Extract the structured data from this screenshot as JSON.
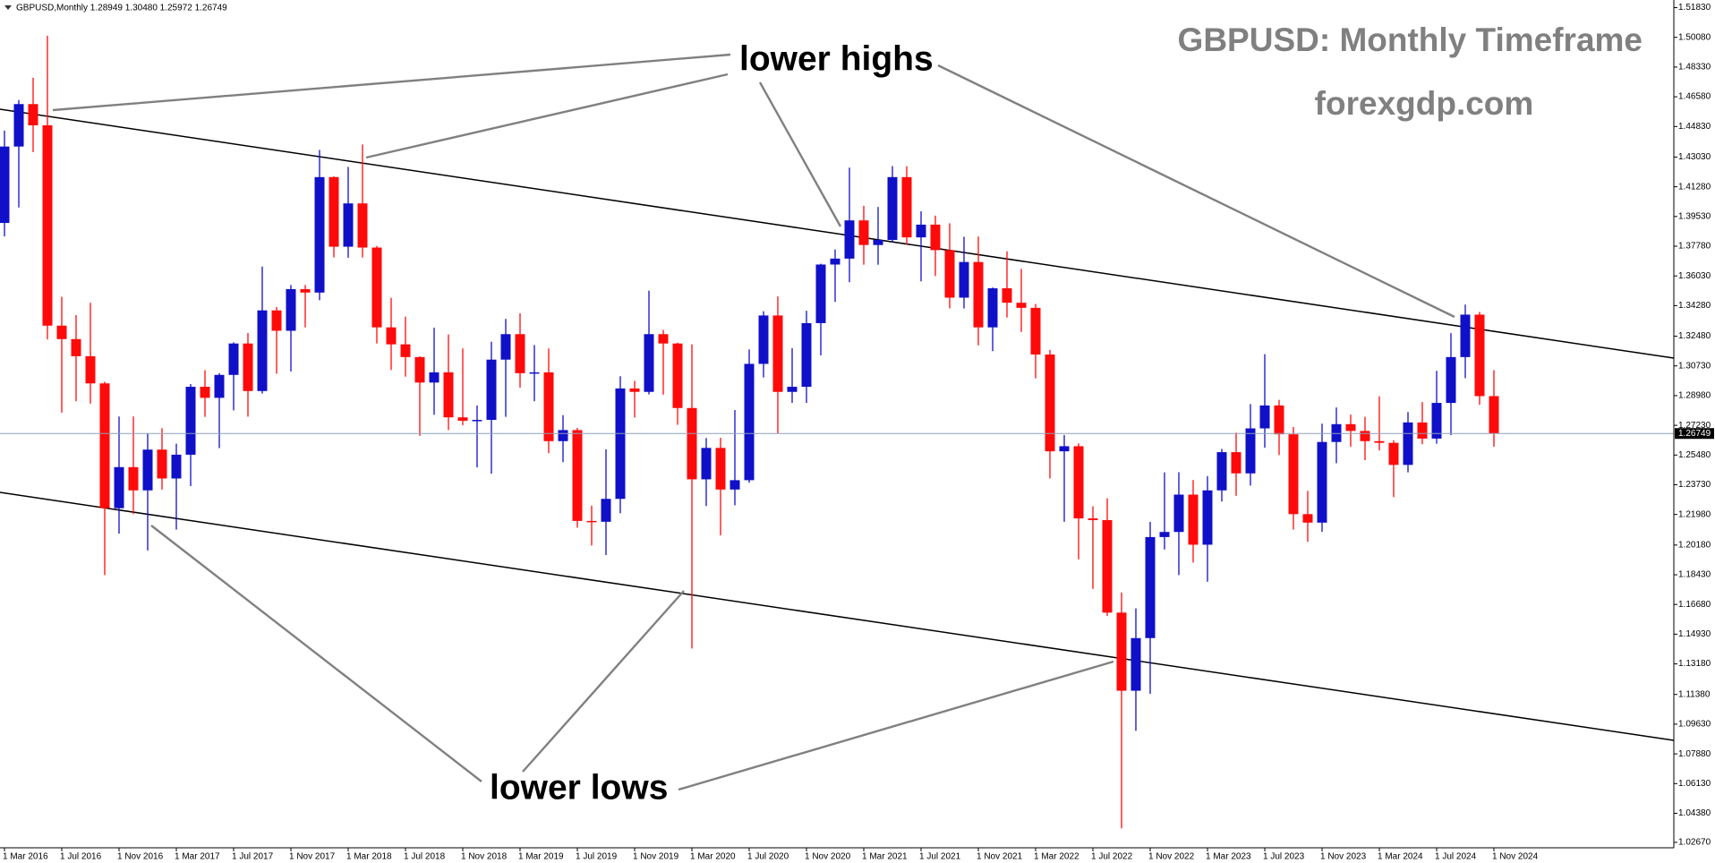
{
  "chart_data": {
    "type": "candlestick",
    "header": "GBPUSD,Monthly  1.28949 1.30480 1.25972 1.26749",
    "title": "GBPUSD: Monthly Timeframe",
    "subtitle": "forexgdp.com",
    "annotations": [
      "lower highs",
      "lower lows"
    ],
    "up_color": "#1010c8",
    "down_color": "#ff0a0a",
    "current_price": 1.26749,
    "categories": [
      "1 Mar 2016",
      null,
      null,
      null,
      "1 Jul 2016",
      null,
      null,
      null,
      "1 Nov 2016",
      null,
      null,
      null,
      "1 Mar 2017",
      null,
      null,
      null,
      "1 Jul 2017",
      null,
      null,
      null,
      "1 Nov 2017",
      null,
      null,
      null,
      "1 Mar 2018",
      null,
      null,
      null,
      "1 Jul 2018",
      null,
      null,
      null,
      "1 Nov 2018",
      null,
      null,
      null,
      "1 Mar 2019",
      null,
      null,
      null,
      "1 Jul 2019",
      null,
      null,
      null,
      "1 Nov 2019",
      null,
      null,
      null,
      "1 Mar 2020",
      null,
      null,
      null,
      "1 Jul 2020",
      null,
      null,
      null,
      "1 Nov 2020",
      null,
      null,
      null,
      "1 Mar 2021",
      null,
      null,
      null,
      "1 Jul 2021",
      null,
      null,
      null,
      "1 Nov 2021",
      null,
      null,
      null,
      "1 Mar 2022",
      null,
      null,
      null,
      "1 Jul 2022",
      null,
      null,
      null,
      "1 Nov 2022",
      null,
      null,
      null,
      "1 Mar 2023",
      null,
      null,
      null,
      "1 Jul 2023",
      null,
      null,
      null,
      "1 Nov 2023",
      null,
      null,
      null,
      "1 Mar 2024",
      null,
      null,
      null,
      "1 Jul 2024",
      null,
      null,
      null,
      "1 Nov 2024"
    ],
    "open": [
      1.3915,
      1.4365,
      1.4615,
      1.449,
      1.331,
      1.3231,
      1.313,
      1.297,
      1.2235,
      1.2477,
      1.234,
      1.258,
      1.241,
      1.255,
      1.295,
      1.2885,
      1.302,
      1.3205,
      1.2925,
      1.34,
      1.328,
      1.3525,
      1.3505,
      1.4185,
      1.3775,
      1.403,
      1.377,
      1.33,
      1.32,
      1.3125,
      1.2975,
      1.3035,
      1.277,
      1.275,
      1.2755,
      1.311,
      1.326,
      1.303,
      1.3035,
      1.263,
      1.2695,
      1.216,
      1.2155,
      1.229,
      1.294,
      1.292,
      1.326,
      1.3205,
      1.2825,
      1.2405,
      1.259,
      1.2345,
      1.24,
      1.3085,
      1.337,
      1.292,
      1.295,
      1.3325,
      1.367,
      1.3705,
      1.393,
      1.3785,
      1.3815,
      1.4185,
      1.383,
      1.3905,
      1.3755,
      1.3475,
      1.3685,
      1.33,
      1.353,
      1.3445,
      1.3415,
      1.314,
      1.257,
      1.26,
      1.2175,
      1.2165,
      1.162,
      1.116,
      1.147,
      1.2065,
      1.2095,
      1.2315,
      1.202,
      1.234,
      1.2565,
      1.244,
      1.2705,
      1.284,
      1.267,
      1.22,
      1.215,
      1.2625,
      1.273,
      1.269,
      1.263,
      1.262,
      1.249,
      1.274,
      1.2645,
      1.2855,
      1.3125,
      1.3375,
      1.28949
    ],
    "high": [
      1.4459,
      1.4639,
      1.477,
      1.5018,
      1.348,
      1.3372,
      1.3445,
      1.298,
      1.2775,
      1.2775,
      1.2674,
      1.2706,
      1.2615,
      1.2966,
      1.3048,
      1.303,
      1.3212,
      1.3267,
      1.3658,
      1.342,
      1.355,
      1.355,
      1.4345,
      1.419,
      1.4245,
      1.4377,
      1.378,
      1.3474,
      1.3363,
      1.313,
      1.3298,
      1.3258,
      1.3176,
      1.284,
      1.3215,
      1.335,
      1.3383,
      1.3196,
      1.3176,
      1.2783,
      1.2708,
      1.225,
      1.2582,
      1.3012,
      1.2985,
      1.3516,
      1.3285,
      1.321,
      1.32,
      1.2648,
      1.265,
      1.2813,
      1.317,
      1.3395,
      1.3482,
      1.3177,
      1.3398,
      1.3675,
      1.3759,
      1.4241,
      1.4016,
      1.4009,
      1.425,
      1.4249,
      1.3984,
      1.3958,
      1.3913,
      1.3834,
      1.3835,
      1.3535,
      1.3748,
      1.3644,
      1.3438,
      1.3167,
      1.2666,
      1.2617,
      1.2246,
      1.2293,
      1.1738,
      1.1645,
      1.2154,
      1.2446,
      1.2447,
      1.2401,
      1.2424,
      1.2584,
      1.268,
      1.2848,
      1.3142,
      1.2873,
      1.2713,
      1.2337,
      1.2733,
      1.2828,
      1.2786,
      1.2773,
      1.2894,
      1.2635,
      1.2801,
      1.286,
      1.3044,
      1.3266,
      1.3434,
      1.3391,
      1.3048
    ],
    "low": [
      1.3836,
      1.4006,
      1.4332,
      1.3229,
      1.2798,
      1.2865,
      1.2851,
      1.1841,
      1.2085,
      1.22,
      1.1986,
      1.2345,
      1.2109,
      1.2365,
      1.2773,
      1.2589,
      1.2811,
      1.2774,
      1.291,
      1.3027,
      1.304,
      1.33,
      1.346,
      1.3712,
      1.371,
      1.3711,
      1.3205,
      1.3049,
      1.301,
      1.2661,
      1.2785,
      1.2695,
      1.2724,
      1.2475,
      1.2438,
      1.2773,
      1.2945,
      1.2865,
      1.2559,
      1.2506,
      1.212,
      1.2015,
      1.1959,
      1.2205,
      1.2769,
      1.2905,
      1.2904,
      1.2726,
      1.1409,
      1.2248,
      1.2075,
      1.2252,
      1.2385,
      1.3005,
      1.2676,
      1.2855,
      1.2855,
      1.3135,
      1.345,
      1.3566,
      1.3669,
      1.3669,
      1.38,
      1.3786,
      1.3571,
      1.3602,
      1.3412,
      1.3411,
      1.3194,
      1.316,
      1.3358,
      1.3273,
      1.3,
      1.241,
      1.2155,
      1.1934,
      1.176,
      1.16,
      1.035,
      1.0924,
      1.1142,
      1.1992,
      1.1841,
      1.1915,
      1.1802,
      1.2274,
      1.2308,
      1.2368,
      1.2591,
      1.2548,
      1.2109,
      1.2037,
      1.2096,
      1.25,
      1.2597,
      1.2518,
      1.2575,
      1.23,
      1.2446,
      1.2612,
      1.2615,
      1.2665,
      1.3001,
      1.2844,
      1.25972
    ],
    "close": [
      1.4365,
      1.4615,
      1.449,
      1.331,
      1.3231,
      1.313,
      1.297,
      1.2235,
      1.2477,
      1.234,
      1.258,
      1.241,
      1.255,
      1.295,
      1.2885,
      1.302,
      1.3205,
      1.2925,
      1.34,
      1.328,
      1.3525,
      1.3505,
      1.4185,
      1.3775,
      1.403,
      1.377,
      1.33,
      1.32,
      1.3125,
      1.2975,
      1.3035,
      1.277,
      1.275,
      1.2755,
      1.311,
      1.326,
      1.303,
      1.3035,
      1.263,
      1.2695,
      1.216,
      1.2155,
      1.229,
      1.294,
      1.292,
      1.326,
      1.3205,
      1.2825,
      1.2405,
      1.259,
      1.2345,
      1.24,
      1.3085,
      1.337,
      1.292,
      1.295,
      1.3325,
      1.367,
      1.3705,
      1.393,
      1.3785,
      1.3815,
      1.4185,
      1.383,
      1.3905,
      1.3755,
      1.3475,
      1.3685,
      1.33,
      1.353,
      1.3445,
      1.3415,
      1.314,
      1.257,
      1.26,
      1.2175,
      1.2165,
      1.162,
      1.116,
      1.147,
      1.2065,
      1.2095,
      1.2315,
      1.202,
      1.234,
      1.2565,
      1.244,
      1.2705,
      1.284,
      1.267,
      1.22,
      1.215,
      1.2625,
      1.273,
      1.269,
      1.263,
      1.262,
      1.249,
      1.274,
      1.2645,
      1.2855,
      1.3125,
      1.3375,
      1.2895,
      1.26749
    ],
    "ylim": [
      1.0235,
      1.5228
    ],
    "yticks": [
      {
        "value": 1.5183,
        "label": "1.51830"
      },
      {
        "value": 1.5008,
        "label": "1.50080"
      },
      {
        "value": 1.4833,
        "label": "1.48330"
      },
      {
        "value": 1.4658,
        "label": "1.46580"
      },
      {
        "value": 1.4483,
        "label": "1.44830"
      },
      {
        "value": 1.4303,
        "label": "1.43030"
      },
      {
        "value": 1.4128,
        "label": "1.41280"
      },
      {
        "value": 1.3953,
        "label": "1.39530"
      },
      {
        "value": 1.3778,
        "label": "1.37780"
      },
      {
        "value": 1.3603,
        "label": "1.36030"
      },
      {
        "value": 1.3428,
        "label": "1.34280"
      },
      {
        "value": 1.3248,
        "label": "1.32480"
      },
      {
        "value": 1.3073,
        "label": "1.30730"
      },
      {
        "value": 1.2898,
        "label": "1.28980"
      },
      {
        "value": 1.2723,
        "label": "1.27230"
      },
      {
        "value": 1.2548,
        "label": "1.25480"
      },
      {
        "value": 1.2373,
        "label": "1.23730"
      },
      {
        "value": 1.2198,
        "label": "1.21980"
      },
      {
        "value": 1.2018,
        "label": "1.20180"
      },
      {
        "value": 1.1843,
        "label": "1.18430"
      },
      {
        "value": 1.1668,
        "label": "1.16680"
      },
      {
        "value": 1.1493,
        "label": "1.14930"
      },
      {
        "value": 1.1318,
        "label": "1.13180"
      },
      {
        "value": 1.1138,
        "label": "1.11380"
      },
      {
        "value": 1.0963,
        "label": "1.09630"
      },
      {
        "value": 1.0788,
        "label": "1.07880"
      },
      {
        "value": 1.0613,
        "label": "1.06130"
      },
      {
        "value": 1.0438,
        "label": "1.04380"
      },
      {
        "value": 1.0267,
        "label": "1.02670"
      }
    ],
    "grid": false
  }
}
